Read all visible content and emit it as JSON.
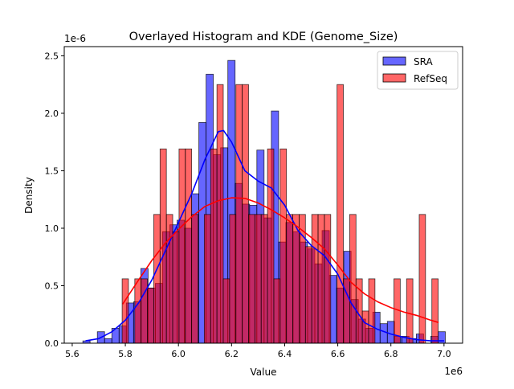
{
  "chart_data": {
    "type": "bar",
    "title": "Overlayed Histogram and KDE (Genome_Size)",
    "xlabel": "Value",
    "ylabel": "Density",
    "x_offset_label": "1e6",
    "y_offset_label": "1e-6",
    "xlim": [
      5.57,
      7.07
    ],
    "ylim": [
      0,
      2.58
    ],
    "xticks": [
      "5.6",
      "5.8",
      "6.0",
      "6.2",
      "6.4",
      "6.6",
      "6.8",
      "7.0"
    ],
    "yticks": [
      "0.0",
      "0.5",
      "1.0",
      "1.5",
      "2.0",
      "2.5"
    ],
    "grid": false,
    "legend_position": "top-right",
    "series": [
      {
        "name": "SRA",
        "color": "#0000ff",
        "bin_start": 5.64,
        "bin_width": 0.0273,
        "values": [
          0.02,
          0,
          0.1,
          0.04,
          0.13,
          0.15,
          0.35,
          0.36,
          0.65,
          0.48,
          0.52,
          0.97,
          1.03,
          1.07,
          1.0,
          1.3,
          1.92,
          2.34,
          1.64,
          1.7,
          2.46,
          1.39,
          1.21,
          1.2,
          1.68,
          1.09,
          2.02,
          0.88,
          1.05,
          0.97,
          0.88,
          0.82,
          0.69,
          0.98,
          0.59,
          0.48,
          0.8,
          0.38,
          0.21,
          0.13,
          0.27,
          0.17,
          0.19,
          0.06,
          0.06,
          0.04,
          0.08,
          0,
          0.06,
          0.1
        ],
        "kde": [
          [
            5.65,
            0.02
          ],
          [
            5.7,
            0.04
          ],
          [
            5.75,
            0.1
          ],
          [
            5.8,
            0.2
          ],
          [
            5.85,
            0.35
          ],
          [
            5.9,
            0.55
          ],
          [
            5.95,
            0.8
          ],
          [
            6.0,
            1.05
          ],
          [
            6.05,
            1.3
          ],
          [
            6.1,
            1.6
          ],
          [
            6.15,
            1.84
          ],
          [
            6.17,
            1.85
          ],
          [
            6.2,
            1.75
          ],
          [
            6.25,
            1.5
          ],
          [
            6.3,
            1.41
          ],
          [
            6.35,
            1.35
          ],
          [
            6.4,
            1.2
          ],
          [
            6.45,
            0.98
          ],
          [
            6.5,
            0.85
          ],
          [
            6.55,
            0.76
          ],
          [
            6.6,
            0.6
          ],
          [
            6.65,
            0.35
          ],
          [
            6.7,
            0.18
          ],
          [
            6.75,
            0.12
          ],
          [
            6.8,
            0.08
          ],
          [
            6.85,
            0.05
          ],
          [
            6.9,
            0.03
          ],
          [
            6.95,
            0.02
          ],
          [
            7.0,
            0.02
          ]
        ]
      },
      {
        "name": "RefSeq",
        "color": "#ff0000",
        "bin_start": 5.788,
        "bin_width": 0.0238,
        "values": [
          0.56,
          0,
          0.56,
          0.56,
          0.48,
          1.12,
          1.69,
          1.12,
          0.97,
          1.69,
          1.69,
          1.12,
          0,
          1.12,
          1.69,
          2.25,
          0.56,
          1.12,
          2.25,
          2.25,
          1.12,
          1.12,
          1.12,
          1.69,
          0.56,
          1.69,
          1.12,
          1.12,
          1.12,
          0.84,
          1.12,
          1.12,
          1.12,
          0,
          2.25,
          0.56,
          1.12,
          0.56,
          0.28,
          0.56,
          0,
          0,
          0,
          0.56,
          0,
          0.56,
          0,
          1.12,
          0,
          0.56
        ],
        "kde": [
          [
            5.79,
            0.34
          ],
          [
            5.85,
            0.55
          ],
          [
            5.9,
            0.72
          ],
          [
            5.95,
            0.87
          ],
          [
            6.0,
            0.99
          ],
          [
            6.05,
            1.1
          ],
          [
            6.1,
            1.19
          ],
          [
            6.15,
            1.24
          ],
          [
            6.2,
            1.265
          ],
          [
            6.25,
            1.26
          ],
          [
            6.3,
            1.22
          ],
          [
            6.35,
            1.16
          ],
          [
            6.4,
            1.09
          ],
          [
            6.45,
            1.01
          ],
          [
            6.5,
            0.92
          ],
          [
            6.55,
            0.82
          ],
          [
            6.6,
            0.68
          ],
          [
            6.65,
            0.53
          ],
          [
            6.7,
            0.43
          ],
          [
            6.75,
            0.36
          ],
          [
            6.8,
            0.31
          ],
          [
            6.85,
            0.27
          ],
          [
            6.9,
            0.24
          ],
          [
            6.95,
            0.2
          ],
          [
            6.98,
            0.18
          ]
        ]
      }
    ]
  }
}
